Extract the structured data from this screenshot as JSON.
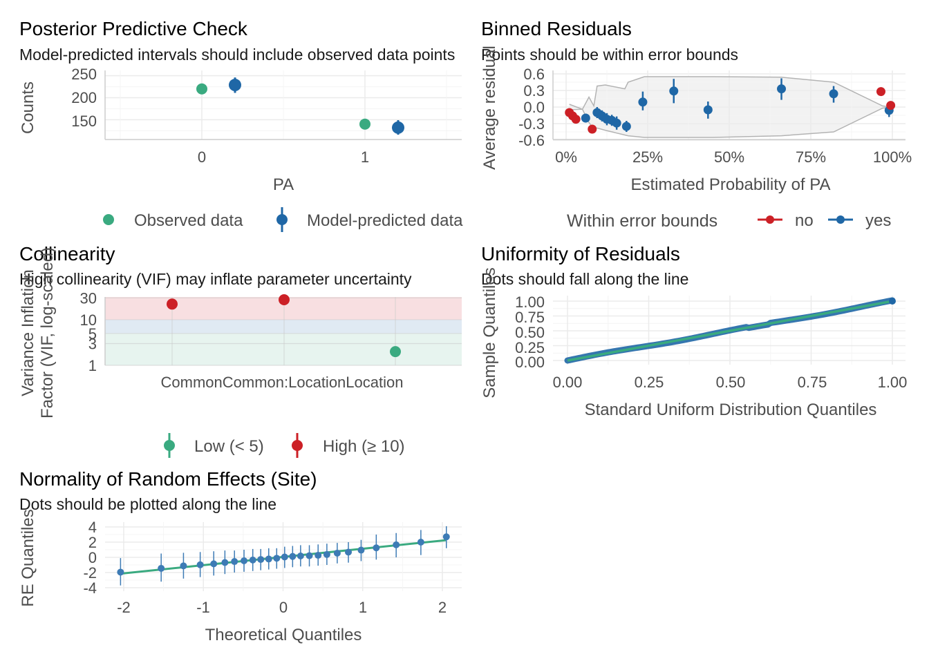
{
  "chart_data": [
    {
      "id": "ppc",
      "type": "scatter",
      "title": "Posterior Predictive Check",
      "subtitle": "Model-predicted intervals should include observed data points",
      "xlabel": "PA",
      "ylabel": "Counts",
      "x_ticks": [
        "0",
        "1"
      ],
      "y_ticks": [
        150,
        200,
        250
      ],
      "ylim": [
        105,
        262
      ],
      "legend_position": "bottom",
      "legend": [
        "Observed data",
        "Model-predicted data"
      ],
      "colors": {
        "observed": "#3aaa80",
        "predicted": "#1f67a6"
      },
      "observed": [
        {
          "x": "0",
          "y": 220
        },
        {
          "x": "1",
          "y": 140
        }
      ],
      "predicted": [
        {
          "x": "0",
          "y": 229,
          "low": 211,
          "high": 246
        },
        {
          "x": "1",
          "y": 132,
          "low": 116,
          "high": 149
        }
      ]
    },
    {
      "id": "binned",
      "type": "scatter",
      "title": "Binned Residuals",
      "subtitle": "Points should be within error bounds",
      "xlabel": "Estimated Probability of PA",
      "ylabel": "Average residual",
      "x_ticks": [
        "0%",
        "25%",
        "50%",
        "75%",
        "100%"
      ],
      "y_ticks": [
        "-0.6",
        "-0.3",
        "0.0",
        "0.3",
        "0.6"
      ],
      "xlim": [
        0,
        1
      ],
      "ylim": [
        -0.6,
        0.6
      ],
      "legend_title": "Within error bounds",
      "legend_position": "bottom",
      "legend": [
        "no",
        "yes"
      ],
      "colors": {
        "no": "#cc2026",
        "yes": "#1f67a6",
        "bounds": "#b3b3b3"
      },
      "points": [
        {
          "x": 0.01,
          "y": -0.1,
          "within": "no"
        },
        {
          "x": 0.02,
          "y": -0.16,
          "within": "no"
        },
        {
          "x": 0.03,
          "y": -0.22,
          "within": "no"
        },
        {
          "x": 0.06,
          "y": -0.2,
          "within": "yes",
          "low": -0.28,
          "high": -0.12
        },
        {
          "x": 0.08,
          "y": -0.4,
          "within": "no"
        },
        {
          "x": 0.095,
          "y": -0.1,
          "within": "yes",
          "low": -0.2,
          "high": 0.0
        },
        {
          "x": 0.11,
          "y": -0.16,
          "within": "yes",
          "low": -0.26,
          "high": -0.06
        },
        {
          "x": 0.125,
          "y": -0.22,
          "within": "yes",
          "low": -0.33,
          "high": -0.11
        },
        {
          "x": 0.14,
          "y": -0.24,
          "within": "yes",
          "low": -0.34,
          "high": -0.14
        },
        {
          "x": 0.155,
          "y": -0.29,
          "within": "yes",
          "low": -0.41,
          "high": -0.17
        },
        {
          "x": 0.185,
          "y": -0.35,
          "within": "yes",
          "low": -0.45,
          "high": -0.25
        },
        {
          "x": 0.235,
          "y": 0.09,
          "within": "yes",
          "low": -0.06,
          "high": 0.28
        },
        {
          "x": 0.33,
          "y": 0.29,
          "within": "yes",
          "low": 0.07,
          "high": 0.51
        },
        {
          "x": 0.435,
          "y": -0.05,
          "within": "yes",
          "low": -0.21,
          "high": 0.1
        },
        {
          "x": 0.66,
          "y": 0.33,
          "within": "yes",
          "low": 0.13,
          "high": 0.52
        },
        {
          "x": 0.82,
          "y": 0.24,
          "within": "yes",
          "low": 0.08,
          "high": 0.38
        },
        {
          "x": 0.965,
          "y": 0.28,
          "within": "no"
        },
        {
          "x": 0.99,
          "y": -0.06,
          "within": "yes",
          "low": -0.18,
          "high": 0.05
        },
        {
          "x": 0.995,
          "y": 0.03,
          "within": "no"
        }
      ]
    },
    {
      "id": "vif",
      "type": "scatter",
      "title": "Collinearity",
      "subtitle": "High collinearity (VIF) may inflate parameter uncertainty",
      "xlabel": "",
      "ylabel": "Variance Inflation Factor (VIF, log-scaled)",
      "y_scale": "log",
      "y_ticks": [
        1,
        3,
        5,
        10,
        30
      ],
      "ylim": [
        1,
        31
      ],
      "x_ticks": [
        "Common",
        "Common:Location",
        "Location"
      ],
      "legend_position": "bottom",
      "legend": [
        "Low (< 5)",
        "High (≥ 10)"
      ],
      "colors": {
        "low": "#3aaa80",
        "high": "#cc2026",
        "band_low": "#e7f4ef",
        "band_mid": "#e0eaf3",
        "band_high": "#f8dfe1"
      },
      "points": [
        {
          "x": "Common",
          "y": 22,
          "group": "high"
        },
        {
          "x": "Common:Location",
          "y": 29,
          "group": "high"
        },
        {
          "x": "Location",
          "y": 2,
          "group": "low"
        }
      ]
    },
    {
      "id": "uniform",
      "type": "line",
      "title": "Uniformity of Residuals",
      "subtitle": "Dots should fall along the line",
      "xlabel": "Standard Uniform Distribution Quantiles",
      "ylabel": "Sample Quantiles",
      "x_ticks": [
        "0.00",
        "0.25",
        "0.50",
        "0.75",
        "1.00"
      ],
      "y_ticks": [
        "0.00",
        "0.25",
        "0.50",
        "0.75",
        "1.00"
      ],
      "xlim": [
        0,
        1
      ],
      "ylim": [
        0,
        1
      ],
      "colors": {
        "dots": "#1f67a6",
        "line": "#3aaa80"
      }
    },
    {
      "id": "re",
      "type": "scatter",
      "title": "Normality of Random Effects (Site)",
      "subtitle": "Dots should be plotted along the line",
      "xlabel": "Theoretical Quantiles",
      "ylabel": "RE Quantiles",
      "x_ticks": [
        "-2",
        "-1",
        "0",
        "1",
        "2"
      ],
      "y_ticks": [
        "4",
        "2",
        "0",
        "-2",
        "-4"
      ],
      "xlim": [
        -2.2,
        2.25
      ],
      "ylim": [
        -4.3,
        4.8
      ],
      "colors": {
        "dots": "#3d7bb5",
        "line": "#3aaa80"
      },
      "line": {
        "intercept": 0.05,
        "slope": 1.08
      },
      "points": [
        {
          "x": -2.04,
          "y": -1.95,
          "low": -3.7,
          "high": -0.1
        },
        {
          "x": -1.53,
          "y": -1.45,
          "low": -3.2,
          "high": 0.5
        },
        {
          "x": -1.25,
          "y": -1.12,
          "low": -2.8,
          "high": 0.6
        },
        {
          "x": -1.04,
          "y": -0.98,
          "low": -2.6,
          "high": 0.7
        },
        {
          "x": -0.87,
          "y": -0.85,
          "low": -2.4,
          "high": 0.8
        },
        {
          "x": -0.73,
          "y": -0.68,
          "low": -2.2,
          "high": 0.9
        },
        {
          "x": -0.61,
          "y": -0.55,
          "low": -2.0,
          "high": 0.9
        },
        {
          "x": -0.49,
          "y": -0.45,
          "low": -1.9,
          "high": 1.0
        },
        {
          "x": -0.38,
          "y": -0.35,
          "low": -1.8,
          "high": 1.1
        },
        {
          "x": -0.28,
          "y": -0.28,
          "low": -1.7,
          "high": 1.1
        },
        {
          "x": -0.18,
          "y": -0.22,
          "low": -1.6,
          "high": 1.2
        },
        {
          "x": -0.08,
          "y": -0.12,
          "low": -1.5,
          "high": 1.2
        },
        {
          "x": 0.02,
          "y": 0.05,
          "low": -1.4,
          "high": 1.4
        },
        {
          "x": 0.12,
          "y": 0.12,
          "low": -1.3,
          "high": 1.5
        },
        {
          "x": 0.22,
          "y": 0.18,
          "low": -1.2,
          "high": 1.6
        },
        {
          "x": 0.33,
          "y": 0.22,
          "low": -1.2,
          "high": 1.6
        },
        {
          "x": 0.44,
          "y": 0.27,
          "low": -1.1,
          "high": 1.7
        },
        {
          "x": 0.55,
          "y": 0.38,
          "low": -1.0,
          "high": 1.8
        },
        {
          "x": 0.68,
          "y": 0.55,
          "low": -0.8,
          "high": 1.9
        },
        {
          "x": 0.82,
          "y": 0.68,
          "low": -0.7,
          "high": 2.0
        },
        {
          "x": 0.98,
          "y": 0.95,
          "low": -0.5,
          "high": 2.3
        },
        {
          "x": 1.17,
          "y": 1.25,
          "low": -0.3,
          "high": 3.0
        },
        {
          "x": 1.42,
          "y": 1.65,
          "low": 0.0,
          "high": 3.2
        },
        {
          "x": 1.73,
          "y": 2.0,
          "low": 0.3,
          "high": 3.6
        },
        {
          "x": 2.05,
          "y": 2.7,
          "low": 1.2,
          "high": 4.1
        }
      ]
    }
  ]
}
